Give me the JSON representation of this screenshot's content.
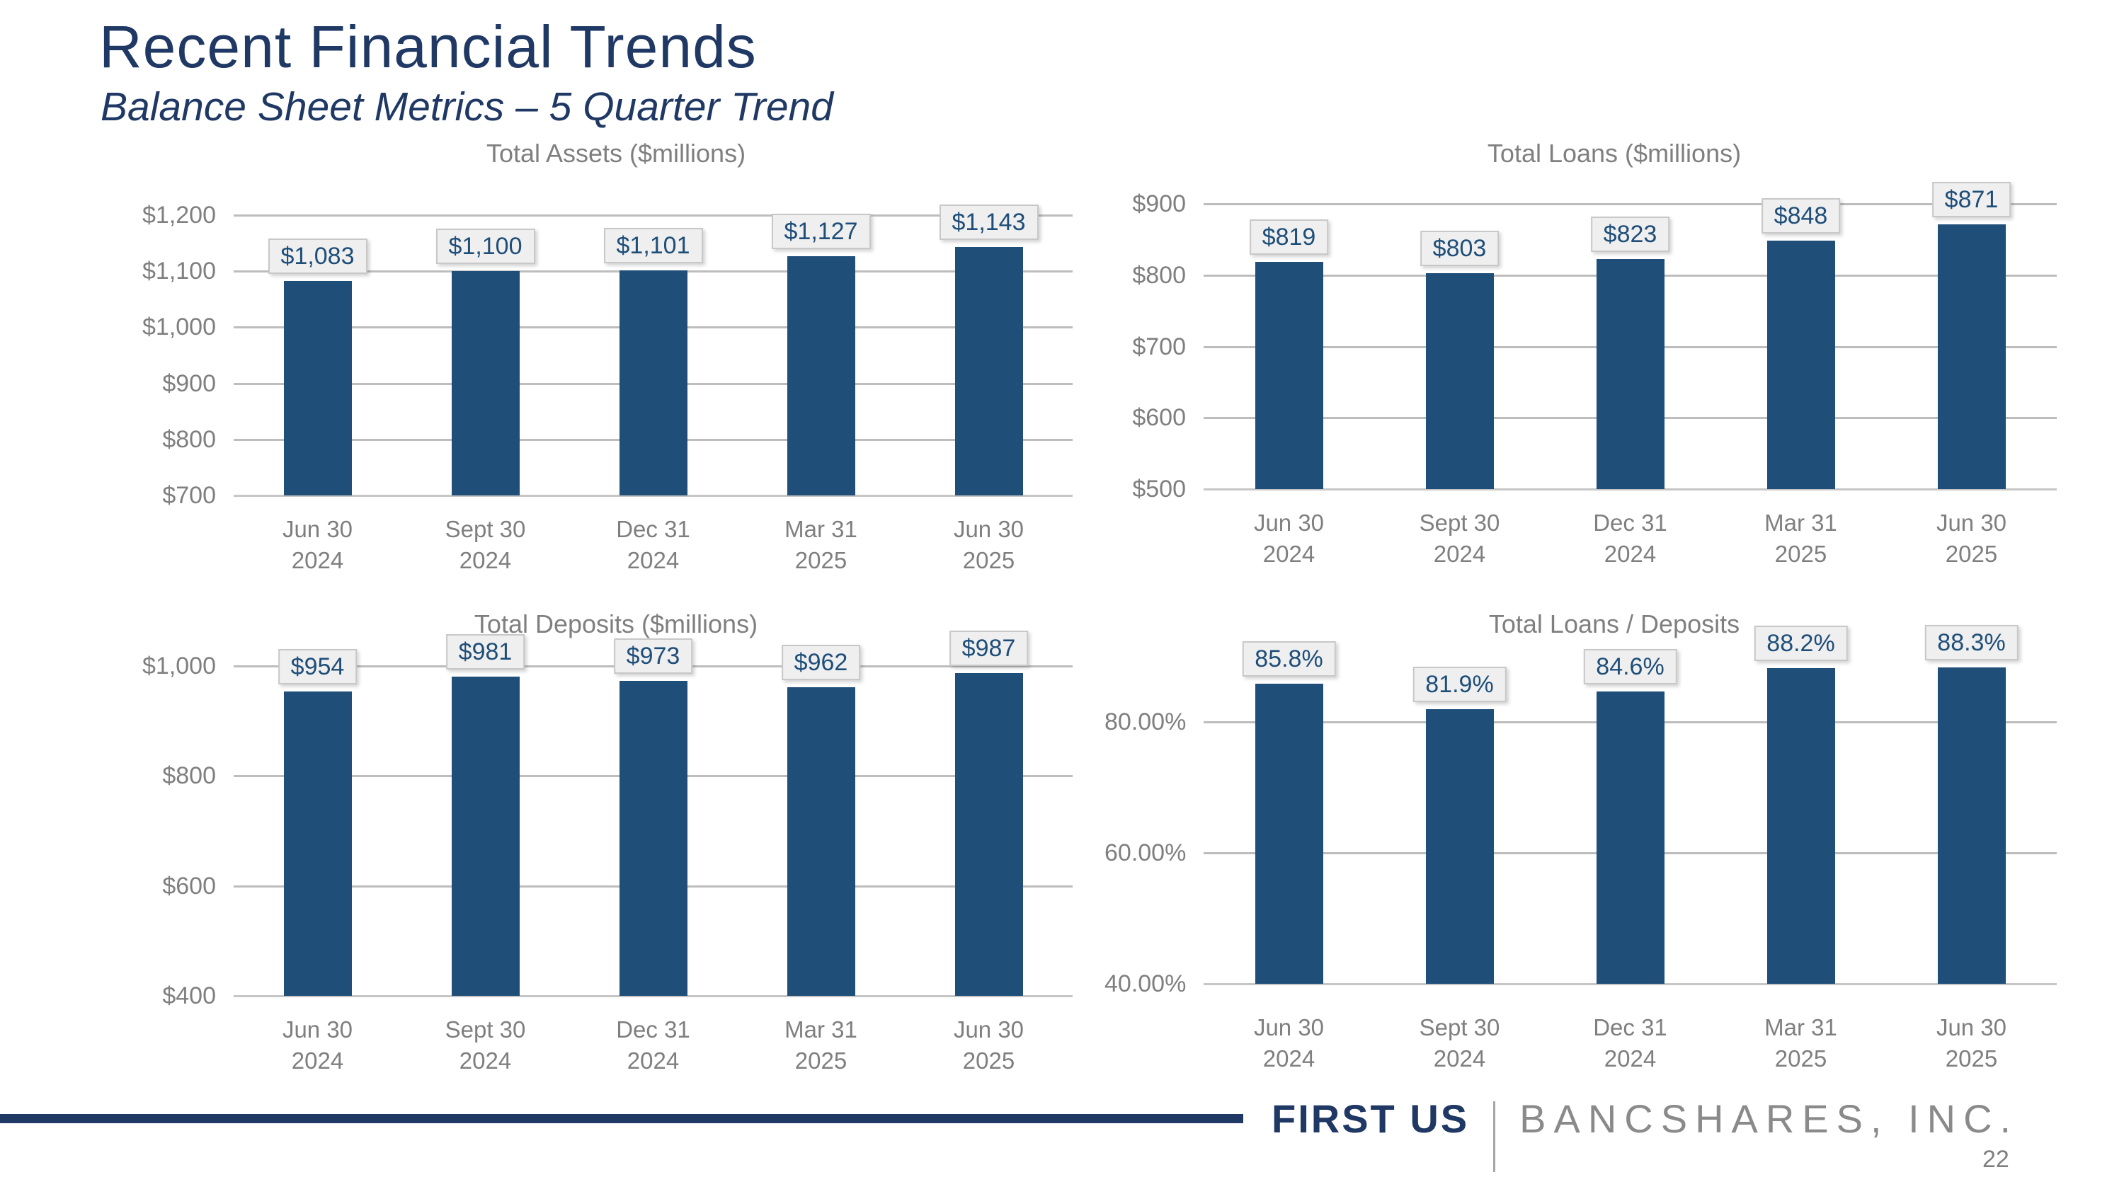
{
  "page": {
    "title": "Recent Financial Trends",
    "subtitle": "Balance Sheet Metrics – 5 Quarter Trend",
    "page_number": "22"
  },
  "footer": {
    "brand_primary": "FIRST US",
    "brand_secondary": "BANCSHARES, INC."
  },
  "colors": {
    "title_navy": "#1F3864",
    "bar_fill": "#1F4E79",
    "data_label_text": "#1F4E79",
    "axis_text_gray": "#7F7F7F",
    "gridline_gray": "#BDBDBD",
    "label_box_bg": "#EFEFEF",
    "label_box_border": "#C8C8C8",
    "brand_gray": "#8A8A8A",
    "footer_rule_navy": "#1F3864"
  },
  "chart_data": [
    {
      "type": "bar",
      "title": "Total Assets ($millions)",
      "categories": [
        "Jun 30\n2024",
        "Sept 30\n2024",
        "Dec 31\n2024",
        "Mar 31\n2025",
        "Jun 30\n2025"
      ],
      "values": [
        1083,
        1100,
        1101,
        1127,
        1143
      ],
      "value_labels": [
        "$1,083",
        "$1,100",
        "$1,101",
        "$1,127",
        "$1,143"
      ],
      "y_ticks": [
        {
          "value": 1200,
          "label": "$1,200"
        },
        {
          "value": 1100,
          "label": "$1,100"
        },
        {
          "value": 1000,
          "label": "$1,000"
        },
        {
          "value": 900,
          "label": "$900"
        },
        {
          "value": 800,
          "label": "$800"
        },
        {
          "value": 700,
          "label": "$700"
        }
      ],
      "ylim": [
        700,
        1200
      ],
      "grid": true,
      "legend": false
    },
    {
      "type": "bar",
      "title": "Total Loans ($millions)",
      "categories": [
        "Jun 30\n2024",
        "Sept 30\n2024",
        "Dec 31\n2024",
        "Mar 31\n2025",
        "Jun 30\n2025"
      ],
      "values": [
        819,
        803,
        823,
        848,
        871
      ],
      "value_labels": [
        "$819",
        "$803",
        "$823",
        "$848",
        "$871"
      ],
      "y_ticks": [
        {
          "value": 900,
          "label": "$900"
        },
        {
          "value": 800,
          "label": "$800"
        },
        {
          "value": 700,
          "label": "$700"
        },
        {
          "value": 600,
          "label": "$600"
        },
        {
          "value": 500,
          "label": "$500"
        }
      ],
      "ylim": [
        500,
        900
      ],
      "grid": true,
      "legend": false
    },
    {
      "type": "bar",
      "title": "Total Deposits ($millions)",
      "categories": [
        "Jun 30\n2024",
        "Sept 30\n2024",
        "Dec 31\n2024",
        "Mar 31\n2025",
        "Jun 30\n2025"
      ],
      "values": [
        954,
        981,
        973,
        962,
        987
      ],
      "value_labels": [
        "$954",
        "$981",
        "$973",
        "$962",
        "$987"
      ],
      "y_ticks": [
        {
          "value": 1000,
          "label": "$1,000"
        },
        {
          "value": 800,
          "label": "$800"
        },
        {
          "value": 600,
          "label": "$600"
        },
        {
          "value": 400,
          "label": "$400"
        }
      ],
      "ylim": [
        400,
        1000
      ],
      "grid": true,
      "legend": false
    },
    {
      "type": "bar",
      "title": "Total Loans / Deposits",
      "categories": [
        "Jun 30\n2024",
        "Sept 30\n2024",
        "Dec 31\n2024",
        "Mar 31\n2025",
        "Jun 30\n2025"
      ],
      "values": [
        85.8,
        81.9,
        84.6,
        88.2,
        88.3
      ],
      "value_labels": [
        "85.8%",
        "81.9%",
        "84.6%",
        "88.2%",
        "88.3%"
      ],
      "y_ticks": [
        {
          "value": 80,
          "label": "80.00%"
        },
        {
          "value": 60,
          "label": "60.00%"
        },
        {
          "value": 40,
          "label": "40.00%"
        }
      ],
      "ylim": [
        40,
        80
      ],
      "grid": true,
      "legend": false
    }
  ]
}
